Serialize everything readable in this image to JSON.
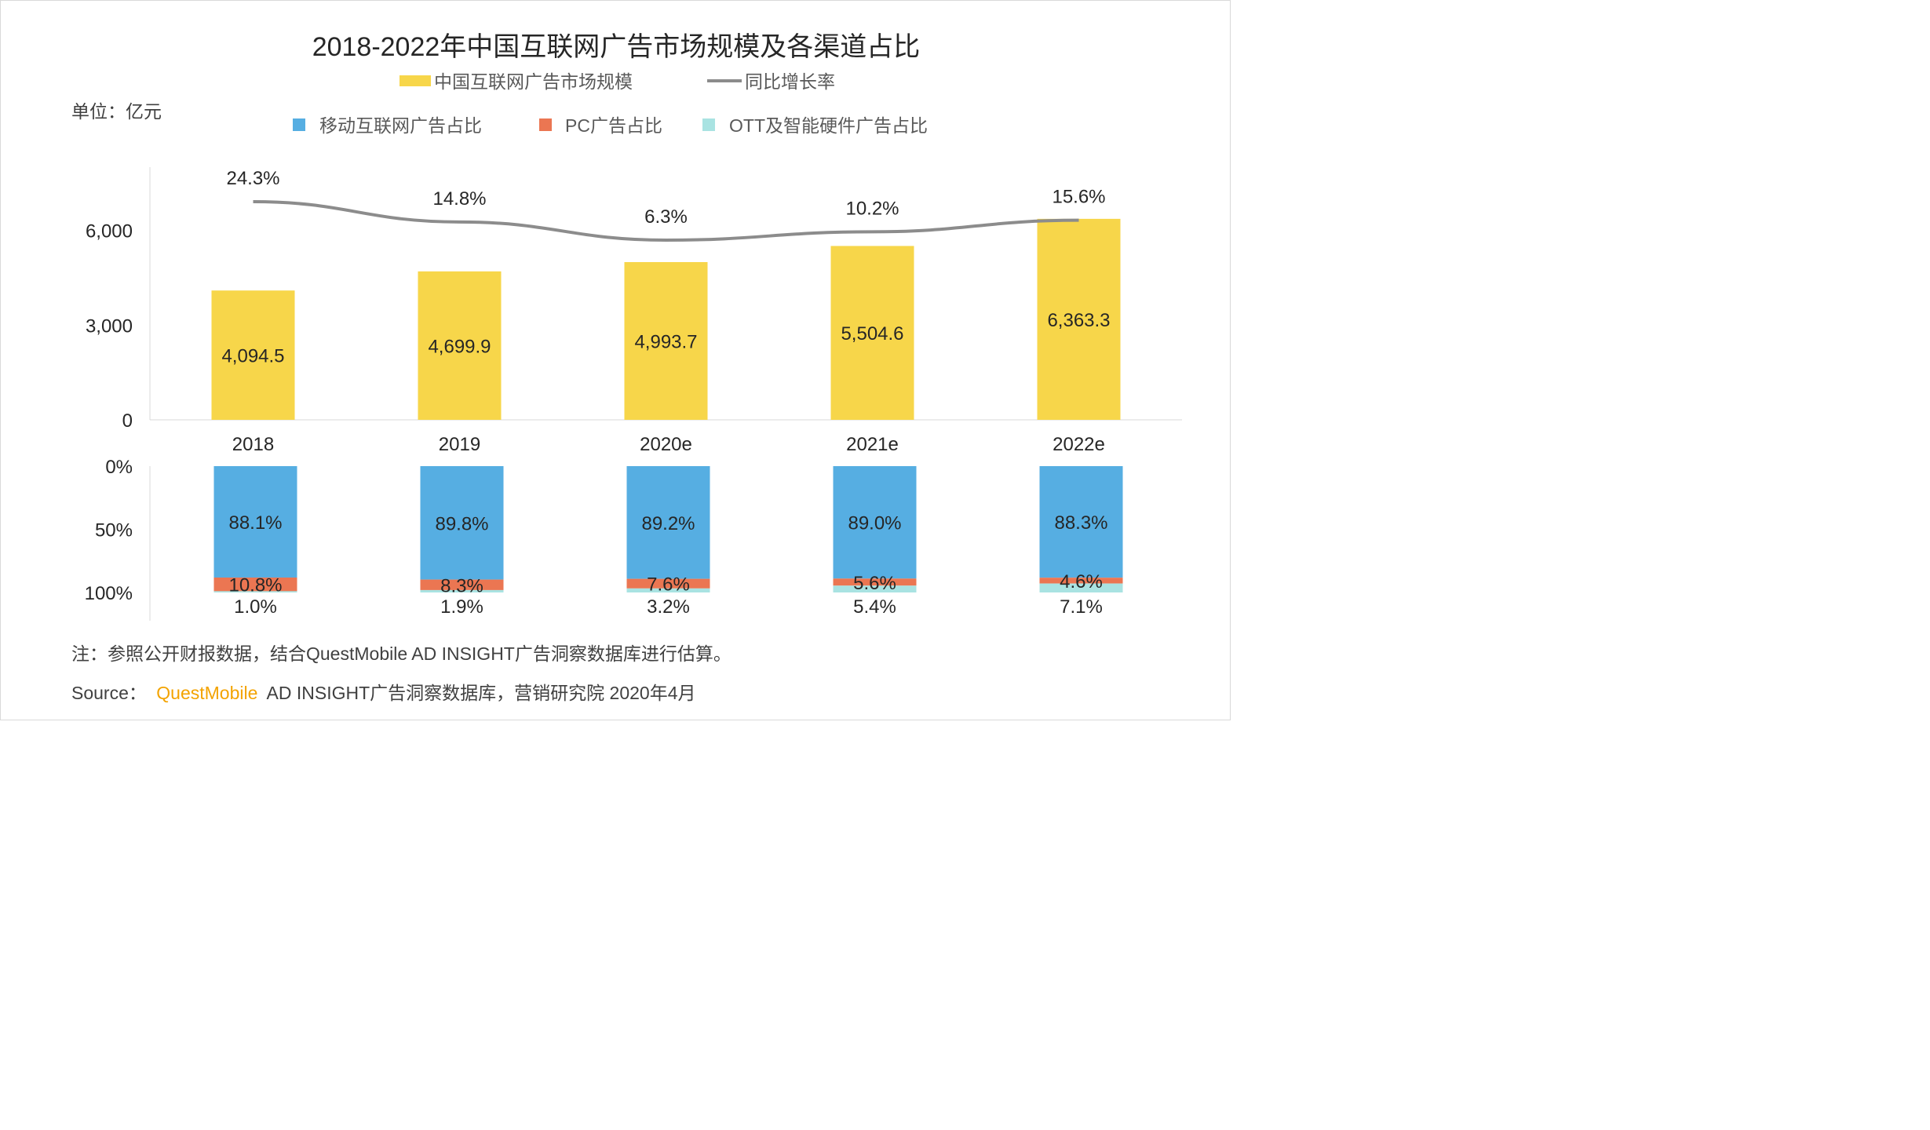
{
  "title": "2018-2022年中国互联网广告市场规模及各渠道占比",
  "unit_label": "单位：亿元",
  "legend_top": [
    {
      "label": "中国互联网广告市场规模",
      "swatch": "bar",
      "color": "#F7D64A"
    },
    {
      "label": "同比增长率",
      "swatch": "line",
      "color": "#8C8C8C"
    }
  ],
  "legend_bottom": [
    {
      "label": "移动互联网广告占比",
      "color": "#56AEE2"
    },
    {
      "label": "PC广告占比",
      "color": "#EB7652"
    },
    {
      "label": "OTT及智能硬件广告占比",
      "color": "#A9E3E2"
    }
  ],
  "chart_data": [
    {
      "type": "bar",
      "categories": [
        "2018",
        "2019",
        "2020e",
        "2021e",
        "2022e"
      ],
      "values": [
        4094.5,
        4699.9,
        4993.7,
        5504.6,
        6363.3
      ],
      "value_labels": [
        "4,094.5",
        "4,699.9",
        "4,993.7",
        "5,504.6",
        "6,363.3"
      ],
      "ylim": [
        0,
        8000
      ],
      "yticks": [
        0,
        3000,
        6000
      ],
      "ytick_labels": [
        "0",
        "3,000",
        "6,000"
      ],
      "line_series": {
        "values": [
          24.3,
          14.8,
          6.3,
          10.2,
          15.6
        ],
        "labels": [
          "24.3%",
          "14.8%",
          "6.3%",
          "10.2%",
          "15.6%"
        ]
      }
    },
    {
      "type": "bar",
      "stacked": true,
      "categories": [
        "2018",
        "2019",
        "2020e",
        "2021e",
        "2022e"
      ],
      "series": [
        {
          "values": [
            88.1,
            89.8,
            89.2,
            89.0,
            88.3
          ],
          "labels": [
            "88.1%",
            "89.8%",
            "89.2%",
            "89.0%",
            "88.3%"
          ]
        },
        {
          "values": [
            10.8,
            8.3,
            7.6,
            5.6,
            4.6
          ],
          "labels": [
            "10.8%",
            "8.3%",
            "7.6%",
            "5.6%",
            "4.6%"
          ]
        },
        {
          "values": [
            1.0,
            1.9,
            3.2,
            5.4,
            7.1
          ],
          "labels": [
            "1.0%",
            "1.9%",
            "3.2%",
            "5.4%",
            "7.1%"
          ]
        }
      ],
      "yticks": [
        0,
        50,
        100
      ],
      "ytick_labels": [
        "0%",
        "50%",
        "100%"
      ]
    }
  ],
  "note": "注：参照公开财报数据，结合QuestMobile AD INSIGHT广告洞察数据库进行估算。",
  "source_prefix": "Source：",
  "source_brand": "QuestMobile",
  "source_rest": "AD INSIGHT广告洞察数据库，营销研究院 2020年4月",
  "colors": {
    "bar": "#F7D64A",
    "line": "#8C8C8C",
    "mobile": "#56AEE2",
    "pc": "#EB7652",
    "ott": "#A9E3E2",
    "brand": "#F3A300",
    "text": "#262626",
    "muted": "#595959",
    "axis": "#d9d9d9"
  }
}
